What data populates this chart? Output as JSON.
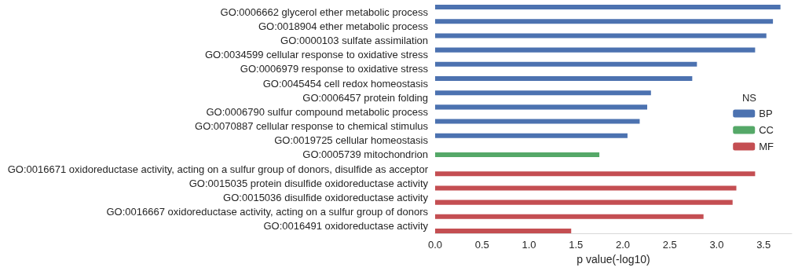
{
  "chart_data": {
    "type": "bar",
    "orientation": "horizontal",
    "xlabel": "p value(-log10)",
    "legend_title": "NS",
    "legend": "right",
    "grid": false,
    "categories": [
      "GO:0006662 glycerol ether metabolic process",
      "GO:0018904 ether metabolic process",
      "GO:0000103 sulfate assimilation",
      "GO:0034599 cellular response to oxidative stress",
      "GO:0006979 response to oxidative stress",
      "GO:0045454 cell redox homeostasis",
      "GO:0006457 protein folding",
      "GO:0006790 sulfur compound metabolic process",
      "GO:0070887 cellular response to chemical stimulus",
      "GO:0019725 cellular homeostasis",
      "GO:0005739 mitochondrion",
      "GO:0016671 oxidoreductase activity, acting on a sulfur group of donors, disulfide as acceptor",
      "GO:0015035 protein disulfide oxidoreductase activity",
      "GO:0015036 disulfide oxidoreductase activity",
      "GO:0016667 oxidoreductase activity, acting on a sulfur group of donors",
      "GO:0016491 oxidoreductase activity"
    ],
    "series": [
      {
        "name": "BP",
        "color": "#4c72b0",
        "values": [
          3.68,
          3.6,
          3.53,
          3.41,
          2.79,
          2.74,
          2.3,
          2.26,
          2.18,
          2.05,
          null,
          null,
          null,
          null,
          null,
          null
        ]
      },
      {
        "name": "CC",
        "color": "#55a868",
        "values": [
          null,
          null,
          null,
          null,
          null,
          null,
          null,
          null,
          null,
          null,
          1.75,
          null,
          null,
          null,
          null,
          null
        ]
      },
      {
        "name": "MF",
        "color": "#c44e52",
        "values": [
          null,
          null,
          null,
          null,
          null,
          null,
          null,
          null,
          null,
          null,
          null,
          3.41,
          3.21,
          3.17,
          2.86,
          1.45
        ]
      }
    ],
    "xlim": [
      0,
      3.8
    ],
    "xticks": [
      {
        "value": 0,
        "label": "0.0"
      },
      0.5,
      {
        "value": 1,
        "label": "1.0"
      },
      1.5,
      {
        "value": 2,
        "label": "2.0"
      },
      2.5,
      {
        "value": 3,
        "label": "3.0"
      },
      3.5
    ]
  }
}
